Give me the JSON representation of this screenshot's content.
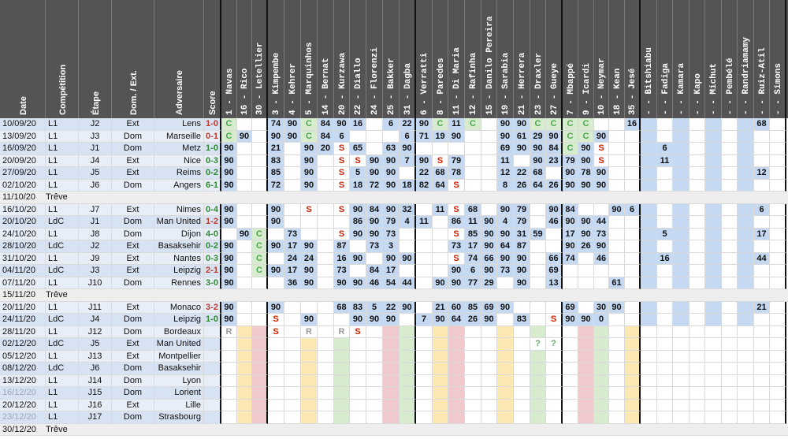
{
  "header_labels": {
    "date": "Date",
    "competition": "Compétition",
    "etape": "Étape",
    "domext": "Dom. / Ext.",
    "adversaire": "Adversaire",
    "score": "Score",
    "players": [
      {
        "num": "1",
        "name": "Navas"
      },
      {
        "num": "16",
        "name": "Rico"
      },
      {
        "num": "30",
        "name": "Letellier"
      },
      {
        "num": "3",
        "name": "Kimpembe"
      },
      {
        "num": "4",
        "name": "Kehrer"
      },
      {
        "num": "5",
        "name": "Marquinhos"
      },
      {
        "num": "14",
        "name": "Bernat"
      },
      {
        "num": "20",
        "name": "Kurzawa"
      },
      {
        "num": "22",
        "name": "Diallo"
      },
      {
        "num": "24",
        "name": "Florenzi"
      },
      {
        "num": "25",
        "name": "Bakker"
      },
      {
        "num": "31",
        "name": "Dagba"
      },
      {
        "num": "6",
        "name": "Verratti"
      },
      {
        "num": "8",
        "name": "Paredes"
      },
      {
        "num": "11",
        "name": "Di Maria"
      },
      {
        "num": "12",
        "name": "Rafinha"
      },
      {
        "num": "15",
        "name": "Danilo Pereira"
      },
      {
        "num": "19",
        "name": "Sarabia"
      },
      {
        "num": "21",
        "name": "Herrera"
      },
      {
        "num": "23",
        "name": "Draxler"
      },
      {
        "num": "27",
        "name": "Gueye"
      },
      {
        "num": "7",
        "name": "Mbappé"
      },
      {
        "num": "9",
        "name": "Icardi"
      },
      {
        "num": "10",
        "name": "Neymar"
      },
      {
        "num": "18",
        "name": "Kean"
      },
      {
        "num": "35",
        "name": "Jesé"
      },
      {
        "num": "-",
        "name": "Bitshiabu"
      },
      {
        "num": "-",
        "name": "Fadiga"
      },
      {
        "num": "-",
        "name": "Kamara"
      },
      {
        "num": "-",
        "name": "Kapo"
      },
      {
        "num": "-",
        "name": "Michut"
      },
      {
        "num": "-",
        "name": "Pembélé"
      },
      {
        "num": "-",
        "name": "Randriamamy"
      },
      {
        "num": "-",
        "name": "Ruiz-Atil"
      },
      {
        "num": "-",
        "name": "Simons"
      }
    ]
  },
  "colors": {
    "header": "#545454",
    "gk": "#d9e4f5",
    "def": "#f5dde0",
    "mid": "#fbf0cc",
    "att": "#dcebd8",
    "blue": "#c6d9f2",
    "green": "#d7eccf",
    "yellow": "#fce8b2",
    "pink": "#f0c9cc",
    "win": "#2f8a2f",
    "loss": "#c0392b",
    "red_s": "#cc2200",
    "gold": "#f2c200",
    "green_num": "#4aa84a",
    "gray_R": "#999999"
  },
  "rows": [
    {
      "date": "10/09/20",
      "comp": "L1",
      "etape": "J2",
      "de": "Ext",
      "adv": "Lens",
      "score": "1-0",
      "res": "L",
      "cells": [
        "C",
        "",
        "",
        "74",
        "90",
        "C",
        "84",
        "90",
        "16",
        "",
        "6",
        "22",
        "90",
        "C",
        "11",
        "C",
        "",
        "90",
        "90",
        "C",
        "C",
        "C",
        "C",
        "",
        "",
        "16",
        "",
        "",
        "",
        "",
        "",
        "",
        "",
        "68",
        ""
      ],
      "fx": {
        "2": "B",
        "26": "B",
        "28": "B",
        "30": "B",
        "32": "B"
      }
    },
    {
      "date": "13/09/20",
      "comp": "L1",
      "etape": "J3",
      "de": "Dom",
      "adv": "Marseille",
      "score": "0-1",
      "res": "L",
      "cells": [
        "C",
        "90",
        "",
        "90",
        "90",
        "C",
        "84",
        "6",
        "",
        "",
        "",
        "6",
        "71",
        "19",
        "90",
        "",
        "",
        "90",
        "61",
        "29",
        "90",
        "C",
        "C",
        "90",
        "",
        "",
        "",
        "",
        "",
        "",
        "",
        "",
        "",
        "",
        ""
      ],
      "fx": {
        "26": "B",
        "28": "B",
        "30": "B",
        "32": "B"
      }
    },
    {
      "date": "16/09/20",
      "comp": "L1",
      "etape": "J1",
      "de": "Dom",
      "adv": "Metz",
      "score": "1-0",
      "res": "W",
      "cells": [
        "90",
        "",
        "",
        "21",
        "",
        "90",
        "20",
        "S",
        "65",
        "",
        "63",
        "90",
        "",
        "",
        "",
        "",
        "",
        "69",
        "90",
        "90",
        "84",
        "C",
        "90",
        "S",
        "",
        "",
        "",
        "6",
        "",
        "",
        "",
        "",
        "",
        "",
        ""
      ]
    },
    {
      "date": "20/09/20",
      "comp": "L1",
      "etape": "J4",
      "de": "Ext",
      "adv": "Nice",
      "score": "0-3",
      "res": "W",
      "cells": [
        "90",
        "",
        "",
        "83",
        "",
        "90",
        "",
        "S",
        "S",
        "90",
        "90",
        "7",
        "90",
        "S",
        "79",
        "",
        "",
        "11",
        "",
        "90",
        "23",
        "79",
        "90",
        "S",
        "",
        "",
        "",
        "11",
        "",
        "",
        "",
        "",
        "",
        "",
        ""
      ]
    },
    {
      "date": "27/09/20",
      "comp": "L1",
      "etape": "J5",
      "de": "Ext",
      "adv": "Reims",
      "score": "0-2",
      "res": "W",
      "cells": [
        "90",
        "",
        "",
        "85",
        "",
        "90",
        "",
        "S",
        "5",
        "90",
        "90",
        "",
        "22",
        "68",
        "78",
        "",
        "",
        "12",
        "22",
        "68",
        "",
        "90",
        "78",
        "90",
        "",
        "",
        "",
        "",
        "",
        "",
        "",
        "",
        "",
        "12",
        ""
      ]
    },
    {
      "date": "02/10/20",
      "comp": "L1",
      "etape": "J6",
      "de": "Dom",
      "adv": "Angers",
      "score": "6-1",
      "res": "W",
      "cells": [
        "90",
        "",
        "",
        "72",
        "",
        "90",
        "",
        "S",
        "18",
        "72",
        "90",
        "18",
        "82",
        "64",
        "S",
        "",
        "",
        "8",
        "26",
        "64",
        "26",
        "90",
        "90",
        "90",
        "",
        "",
        "",
        "",
        "",
        "",
        "",
        "",
        "",
        "",
        ""
      ]
    },
    {
      "treve": true,
      "date": "11/10/20",
      "label": "Trêve"
    },
    {
      "date": "16/10/20",
      "comp": "L1",
      "etape": "J7",
      "de": "Ext",
      "adv": "Nimes",
      "score": "0-4",
      "res": "W",
      "cells": [
        "90",
        "",
        "",
        "90",
        "",
        "S",
        "",
        "S",
        "90",
        "84",
        "90",
        "32",
        "",
        "11",
        "S",
        "68",
        "",
        "90",
        "79",
        "",
        "90",
        "84",
        "",
        "",
        "90",
        "6",
        "",
        "",
        "",
        "",
        "",
        "",
        "",
        "6",
        ""
      ]
    },
    {
      "date": "20/10/20",
      "comp": "LdC",
      "etape": "J1",
      "de": "Dom",
      "adv": "Man United",
      "score": "1-2",
      "res": "L",
      "cells": [
        "90",
        "",
        "",
        "90",
        "",
        "",
        "",
        "",
        "86",
        "90",
        "79",
        "4",
        "11",
        "",
        "86",
        "11",
        "90",
        "4",
        "79",
        "",
        "46",
        "90",
        "90",
        "44",
        "",
        "",
        "",
        "",
        "",
        "",
        "",
        "",
        "",
        "",
        ""
      ]
    },
    {
      "date": "24/10/20",
      "comp": "L1",
      "etape": "J8",
      "de": "Dom",
      "adv": "Dijon",
      "score": "4-0",
      "res": "W",
      "cells": [
        "",
        "90",
        "C",
        "",
        "73",
        "",
        "",
        "S",
        "90",
        "90",
        "73",
        "",
        "",
        "",
        "S",
        "85",
        "90",
        "90",
        "31",
        "59",
        "",
        "17",
        "90",
        "73",
        "",
        "",
        "",
        "5",
        "",
        "",
        "",
        "",
        "",
        "17",
        ""
      ]
    },
    {
      "date": "28/10/20",
      "comp": "LdC",
      "etape": "J2",
      "de": "Ext",
      "adv": "Basaksehir",
      "score": "0-2",
      "res": "W",
      "cells": [
        "90",
        "",
        "C",
        "90",
        "17",
        "90",
        "",
        "87",
        "",
        "73",
        "3",
        "",
        "",
        "",
        "73",
        "17",
        "90",
        "64",
        "87",
        "",
        "",
        "90",
        "26",
        "90",
        "",
        "",
        "",
        "",
        "",
        "",
        "",
        "",
        "",
        "",
        ""
      ]
    },
    {
      "date": "31/10/20",
      "comp": "L1",
      "etape": "J9",
      "de": "Ext",
      "adv": "Nantes",
      "score": "0-3",
      "res": "W",
      "cells": [
        "90",
        "",
        "C",
        "",
        "24",
        "24",
        "",
        "16",
        "90",
        "",
        "90",
        "90",
        "",
        "",
        "S",
        "74",
        "66",
        "90",
        "90",
        "",
        "66",
        "74",
        "",
        "46",
        "",
        "",
        "",
        "16",
        "",
        "",
        "",
        "",
        "",
        "44",
        ""
      ]
    },
    {
      "date": "04/11/20",
      "comp": "LdC",
      "etape": "J3",
      "de": "Ext",
      "adv": "Leipzig",
      "score": "2-1",
      "res": "L",
      "cells": [
        "90",
        "",
        "C",
        "90",
        "17",
        "90",
        "",
        "73",
        "",
        "84",
        "17",
        "",
        "",
        "",
        "90",
        "6",
        "90",
        "73",
        "90",
        "",
        "69",
        "",
        "",
        "",
        "",
        "",
        "",
        "",
        "",
        "",
        "",
        "",
        "",
        "",
        ""
      ]
    },
    {
      "date": "07/11/20",
      "comp": "L1",
      "etape": "J10",
      "de": "Dom",
      "adv": "Rennes",
      "score": "3-0",
      "res": "W",
      "cells": [
        "90",
        "",
        "",
        "",
        "36",
        "90",
        "",
        "90",
        "90",
        "46",
        "54",
        "44",
        "",
        "90",
        "90",
        "77",
        "29",
        "",
        "90",
        "",
        "13",
        "",
        "",
        "",
        "61",
        "",
        "",
        "",
        "",
        "",
        "",
        "",
        "",
        "",
        ""
      ]
    },
    {
      "treve": true,
      "date": "15/11/20",
      "label": "Trêve"
    },
    {
      "date": "20/11/20",
      "comp": "L1",
      "etape": "J11",
      "de": "Ext",
      "adv": "Monaco",
      "score": "3-2",
      "res": "L",
      "cells": [
        "90",
        "",
        "",
        "90",
        "",
        "",
        "",
        "68",
        "83",
        "5",
        "22",
        "90",
        "",
        "21",
        "60",
        "85",
        "69",
        "90",
        "",
        "",
        "",
        "69",
        "",
        "30",
        "90",
        "",
        "",
        "",
        "",
        "",
        "",
        "",
        "",
        "21",
        ""
      ]
    },
    {
      "date": "24/11/20",
      "comp": "LdC",
      "etape": "J4",
      "de": "Dom",
      "adv": "Leipzig",
      "score": "1-0",
      "res": "W",
      "cells": [
        "90",
        "",
        "",
        "S",
        "",
        "90",
        "",
        "",
        "90",
        "90",
        "90",
        "",
        "7",
        "90",
        "64",
        "26",
        "90",
        "",
        "83",
        "",
        "S",
        "90",
        "90",
        "0",
        "",
        "",
        "",
        "",
        "",
        "",
        "",
        "",
        "",
        "",
        ""
      ]
    },
    {
      "date": "28/11/20",
      "comp": "L1",
      "etape": "J12",
      "de": "Dom",
      "adv": "Bordeaux",
      "score": "",
      "res": "",
      "cells": [
        "R",
        "",
        "",
        "S",
        "",
        "R",
        "",
        "R",
        "S",
        "",
        "",
        "",
        "",
        "",
        "",
        "",
        "",
        "",
        "",
        "",
        "",
        "",
        "",
        "",
        "",
        "",
        "",
        "",
        "",
        "",
        "",
        "",
        "",
        "",
        ""
      ]
    },
    {
      "date": "02/12/20",
      "comp": "LdC",
      "etape": "J5",
      "de": "Ext",
      "adv": "Man United",
      "score": "",
      "res": "",
      "cells": [
        "",
        "",
        "",
        "",
        "",
        "",
        "",
        "",
        "",
        "",
        "",
        "",
        "",
        "",
        "",
        "",
        "",
        "",
        "",
        "?",
        "?",
        "",
        "",
        "",
        "",
        "",
        "",
        "",
        "",
        "",
        "",
        "",
        "",
        "",
        ""
      ]
    },
    {
      "date": "05/12/20",
      "comp": "L1",
      "etape": "J13",
      "de": "Ext",
      "adv": "Montpellier",
      "score": "",
      "res": "",
      "cells": [
        "",
        "",
        "",
        "",
        "",
        "",
        "",
        "",
        "",
        "",
        "",
        "",
        "",
        "",
        "",
        "",
        "",
        "",
        "",
        "",
        "",
        "",
        "",
        "",
        "",
        "",
        "",
        "",
        "",
        "",
        "",
        "",
        "",
        "",
        ""
      ]
    },
    {
      "date": "08/12/20",
      "comp": "LdC",
      "etape": "J6",
      "de": "Dom",
      "adv": "Basaksehir",
      "score": "",
      "res": "",
      "cells": [
        "",
        "",
        "",
        "",
        "",
        "",
        "",
        "",
        "",
        "",
        "",
        "",
        "",
        "",
        "",
        "",
        "",
        "",
        "",
        "",
        "",
        "",
        "",
        "",
        "",
        "",
        "",
        "",
        "",
        "",
        "",
        "",
        "",
        "",
        ""
      ]
    },
    {
      "date": "13/12/20",
      "comp": "L1",
      "etape": "J14",
      "de": "Dom",
      "adv": "Lyon",
      "score": "",
      "res": "",
      "cells": [
        "",
        "",
        "",
        "",
        "",
        "",
        "",
        "",
        "",
        "",
        "",
        "",
        "",
        "",
        "",
        "",
        "",
        "",
        "",
        "",
        "",
        "",
        "",
        "",
        "",
        "",
        "",
        "",
        "",
        "",
        "",
        "",
        "",
        "",
        ""
      ]
    },
    {
      "date": "16/12/20",
      "comp": "L1",
      "etape": "J15",
      "de": "Dom",
      "adv": "Lorient",
      "score": "",
      "res": "",
      "datefade": true,
      "cells": [
        "",
        "",
        "",
        "",
        "",
        "",
        "",
        "",
        "",
        "",
        "",
        "",
        "",
        "",
        "",
        "",
        "",
        "",
        "",
        "",
        "",
        "",
        "",
        "",
        "",
        "",
        "",
        "",
        "",
        "",
        "",
        "",
        "",
        "",
        ""
      ]
    },
    {
      "date": "20/12/20",
      "comp": "L1",
      "etape": "J16",
      "de": "Ext",
      "adv": "Lille",
      "score": "",
      "res": "",
      "cells": [
        "",
        "",
        "",
        "",
        "",
        "",
        "",
        "",
        "",
        "",
        "",
        "",
        "",
        "",
        "",
        "",
        "",
        "",
        "",
        "",
        "",
        "",
        "",
        "",
        "",
        "",
        "",
        "",
        "",
        "",
        "",
        "",
        "",
        "",
        ""
      ]
    },
    {
      "date": "23/12/20",
      "comp": "L1",
      "etape": "J17",
      "de": "Dom",
      "adv": "Strasbourg",
      "score": "",
      "res": "",
      "datefade": true,
      "cells": [
        "",
        "",
        "",
        "",
        "",
        "",
        "",
        "",
        "",
        "",
        "",
        "",
        "",
        "",
        "",
        "",
        "",
        "",
        "",
        "",
        "",
        "",
        "",
        "",
        "",
        "",
        "",
        "",
        "",
        "",
        "",
        "",
        "",
        "",
        ""
      ]
    },
    {
      "treve": true,
      "date": "30/12/20",
      "label": "Trêve"
    }
  ]
}
